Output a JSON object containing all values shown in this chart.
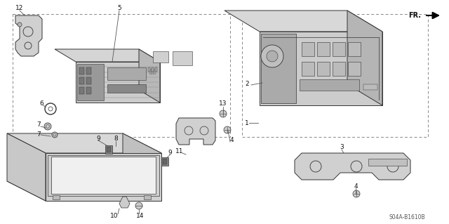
{
  "bg_color": "#ffffff",
  "line_color": "#333333",
  "diagram_code": "S04A-B1610B",
  "fr_label": "FR.",
  "lw": 0.7,
  "lw_thick": 1.0
}
